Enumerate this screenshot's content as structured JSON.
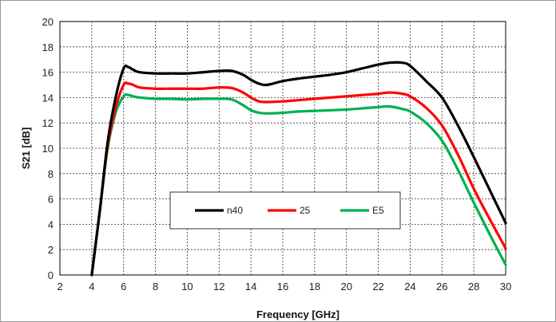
{
  "chart_data": {
    "type": "line",
    "title": "",
    "xlabel": "Frequency [GHz]",
    "ylabel": "S21 [dB]",
    "xlim": [
      2,
      30
    ],
    "ylim": [
      0,
      20
    ],
    "x_ticks": [
      2,
      4,
      6,
      8,
      10,
      12,
      14,
      16,
      18,
      20,
      22,
      24,
      26,
      28,
      30
    ],
    "y_ticks": [
      0,
      2,
      4,
      6,
      8,
      10,
      12,
      14,
      16,
      18,
      20
    ],
    "x_tick_labels": [
      "2",
      "4",
      "6",
      "8",
      "10",
      "12",
      "14",
      "16",
      "18",
      "20",
      "22",
      "24",
      "26",
      "28",
      "30"
    ],
    "y_tick_labels": [
      "0",
      "2",
      "4",
      "6",
      "8",
      "10",
      "12",
      "14",
      "16",
      "18",
      "20"
    ],
    "grid": "dashed",
    "legend_position": "lower-center",
    "series": [
      {
        "name": "n40",
        "color": "#000000",
        "x": [
          4,
          4.5,
          5,
          5.5,
          6,
          6.3,
          6.6,
          7,
          8,
          9,
          10,
          11,
          12,
          12.8,
          13.5,
          14,
          14.5,
          15,
          16,
          17,
          18,
          19,
          20,
          21,
          22,
          22.7,
          23.5,
          24,
          25,
          26,
          27,
          28,
          29,
          30
        ],
        "y": [
          0,
          5,
          10.5,
          14,
          16.3,
          16.4,
          16.2,
          16.0,
          15.9,
          15.9,
          15.9,
          16.0,
          16.1,
          16.1,
          15.8,
          15.4,
          15.1,
          15.0,
          15.3,
          15.5,
          15.65,
          15.8,
          16.0,
          16.3,
          16.6,
          16.75,
          16.75,
          16.5,
          15.3,
          14.0,
          11.8,
          9.3,
          6.7,
          4.1
        ]
      },
      {
        "name": "25",
        "color": "#ff0000",
        "x": [
          4,
          4.5,
          5,
          5.5,
          6,
          6.3,
          6.6,
          7,
          8,
          9,
          10,
          11,
          12,
          12.8,
          13.5,
          14,
          14.5,
          15,
          16,
          17,
          18,
          19,
          20,
          21,
          22,
          22.7,
          23.5,
          24,
          25,
          26,
          27,
          28,
          29,
          30
        ],
        "y": [
          0,
          5,
          10.2,
          13.2,
          15.0,
          15.1,
          15.0,
          14.8,
          14.7,
          14.7,
          14.7,
          14.7,
          14.8,
          14.75,
          14.4,
          14.0,
          13.7,
          13.65,
          13.7,
          13.8,
          13.9,
          14.0,
          14.1,
          14.2,
          14.3,
          14.4,
          14.3,
          14.1,
          13.2,
          11.8,
          9.5,
          6.8,
          4.4,
          2.1
        ]
      },
      {
        "name": "E5",
        "color": "#00b050",
        "x": [
          4,
          4.5,
          5,
          5.5,
          6,
          6.3,
          6.6,
          7,
          8,
          9,
          10,
          11,
          12,
          12.8,
          13.5,
          14,
          14.5,
          15,
          16,
          17,
          18,
          19,
          20,
          21,
          22,
          22.7,
          23.5,
          24,
          25,
          26,
          27,
          28,
          29,
          30
        ],
        "y": [
          0,
          5,
          10.0,
          12.8,
          14.1,
          14.2,
          14.1,
          14.0,
          13.9,
          13.9,
          13.85,
          13.9,
          13.9,
          13.85,
          13.4,
          13.0,
          12.8,
          12.75,
          12.8,
          12.9,
          12.95,
          13.0,
          13.05,
          13.15,
          13.25,
          13.3,
          13.1,
          12.9,
          12.0,
          10.6,
          8.3,
          5.7,
          3.2,
          0.8
        ]
      }
    ]
  }
}
